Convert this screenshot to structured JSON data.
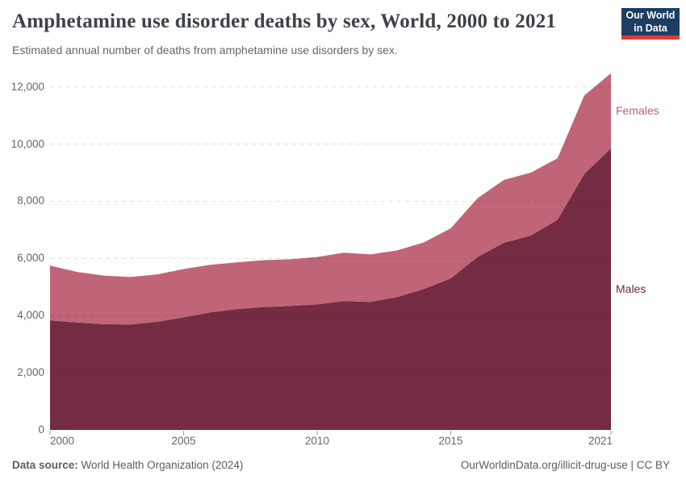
{
  "header": {
    "logo": {
      "line1": "Our World",
      "line2": "in Data",
      "bg_color": "#1d3d63",
      "accent_color": "#dc3e32"
    }
  },
  "chart_data": {
    "type": "area",
    "stacked": true,
    "title": "Amphetamine use disorder deaths by sex, World, 2000 to 2021",
    "subtitle": "Estimated annual number of deaths from amphetamine use disorders by sex.",
    "xlabel": "",
    "ylabel": "",
    "grid": "dashed-horizontal",
    "legend": "right-edge-labels",
    "ylim": [
      0,
      12500
    ],
    "x": [
      2000,
      2001,
      2002,
      2003,
      2004,
      2005,
      2006,
      2007,
      2008,
      2009,
      2010,
      2011,
      2012,
      2013,
      2014,
      2015,
      2016,
      2017,
      2018,
      2019,
      2020,
      2021
    ],
    "series": [
      {
        "name": "Males",
        "color": "#732c41",
        "label_color": "#6e2639",
        "values": [
          3830,
          3760,
          3700,
          3690,
          3780,
          3940,
          4110,
          4230,
          4300,
          4340,
          4390,
          4510,
          4480,
          4650,
          4930,
          5300,
          6050,
          6550,
          6800,
          7350,
          8950,
          9850
        ]
      },
      {
        "name": "Females",
        "color": "#c06577",
        "label_color": "#bd6075",
        "values": [
          1920,
          1770,
          1700,
          1660,
          1660,
          1690,
          1670,
          1630,
          1640,
          1630,
          1660,
          1690,
          1660,
          1630,
          1630,
          1750,
          2050,
          2200,
          2200,
          2150,
          2750,
          2630
        ]
      }
    ],
    "y_ticks": [
      0,
      2000,
      4000,
      6000,
      8000,
      10000,
      12000
    ],
    "y_tick_labels": [
      "0",
      "2,000",
      "4,000",
      "6,000",
      "8,000",
      "10,000",
      "12,000"
    ],
    "x_ticks": [
      {
        "year": 2000,
        "label": "2000"
      },
      {
        "year": 2005,
        "label": "2005"
      },
      {
        "year": 2010,
        "label": "2010"
      },
      {
        "year": 2015,
        "label": "2015"
      },
      {
        "year": 2021,
        "label": "2021"
      }
    ],
    "colors": {
      "gridline": "rgba(0,0,0,0.13)",
      "axis_text": "#666666",
      "tick_mark": "#999999"
    }
  },
  "footer": {
    "source_label": "Data source:",
    "source_value": "World Health Organization (2024)",
    "credit": "OurWorldinData.org/illicit-drug-use | CC BY"
  }
}
